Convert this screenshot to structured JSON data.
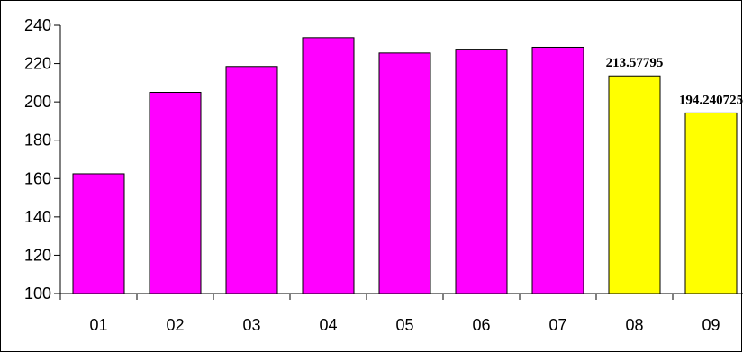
{
  "chart_data": {
    "type": "bar",
    "title": "",
    "xlabel": "",
    "ylabel": "",
    "categories": [
      "01",
      "02",
      "03",
      "04",
      "05",
      "06",
      "07",
      "08",
      "09"
    ],
    "values": [
      162.5,
      205,
      218.5,
      233.5,
      225.5,
      227.5,
      228.5,
      213.57795,
      194.240725
    ],
    "bar_colors": [
      "#ff00ff",
      "#ff00ff",
      "#ff00ff",
      "#ff00ff",
      "#ff00ff",
      "#ff00ff",
      "#ff00ff",
      "#ffff00",
      "#ffff00"
    ],
    "data_labels": [
      "",
      "",
      "",
      "",
      "",
      "",
      "",
      "213.57795",
      "194.240725"
    ],
    "ylim": [
      100,
      240
    ],
    "yticks": [
      100,
      120,
      140,
      160,
      180,
      200,
      220,
      240
    ],
    "ytick_labels": [
      "100",
      "120",
      "140",
      "160",
      "180",
      "200",
      "220",
      "240"
    ],
    "grid": false,
    "legend": "none",
    "colors": {
      "bar_outline": "#000000",
      "axis": "#000000",
      "frame": "#000000",
      "background": "#ffffff"
    }
  }
}
